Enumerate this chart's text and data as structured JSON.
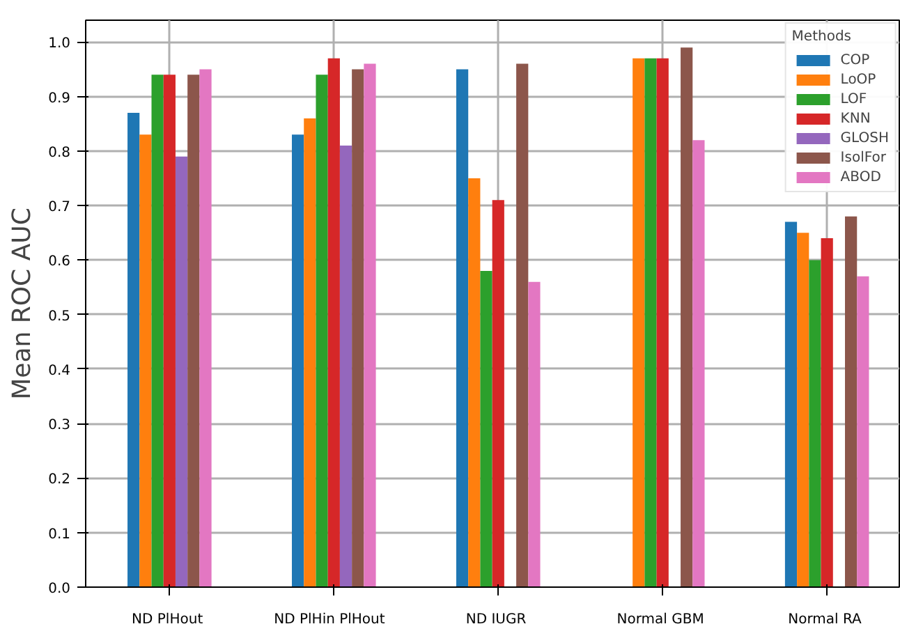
{
  "chart_data": {
    "type": "bar",
    "ylabel": "Mean ROC AUC",
    "legend_title": "Methods",
    "legend": "top right",
    "grid": true,
    "categories": [
      "ND  PlHout",
      "ND  PlHin  PlHout",
      "ND  IUGR",
      "Normal  GBM",
      "Normal  RA"
    ],
    "ylim": [
      0,
      1.04
    ],
    "yticks": [
      {
        "value": 0,
        "label": "0.0"
      },
      {
        "value": 0.1,
        "label": "0.1"
      },
      {
        "value": 0.2,
        "label": "0.2"
      },
      {
        "value": 0.3,
        "label": "0.3"
      },
      {
        "value": 0.4,
        "label": "0.4"
      },
      {
        "value": 0.5,
        "label": "0.5"
      },
      {
        "value": 0.6,
        "label": "0.6"
      },
      {
        "value": 0.7,
        "label": "0.7"
      },
      {
        "value": 0.8,
        "label": "0.8"
      },
      {
        "value": 0.9,
        "label": "0.9"
      },
      {
        "value": 1.0,
        "label": "1.0"
      }
    ],
    "series": [
      {
        "name": "COP",
        "color": "#1f77b4",
        "values": [
          0.87,
          0.83,
          0.95,
          null,
          0.67
        ]
      },
      {
        "name": "LoOP",
        "color": "#ff7f0e",
        "values": [
          0.83,
          0.86,
          0.75,
          0.97,
          0.65
        ]
      },
      {
        "name": "LOF",
        "color": "#2ca02c",
        "values": [
          0.94,
          0.94,
          0.58,
          0.97,
          0.6
        ]
      },
      {
        "name": "KNN",
        "color": "#d62728",
        "values": [
          0.94,
          0.97,
          0.71,
          0.97,
          0.64
        ]
      },
      {
        "name": "GLOSH",
        "color": "#9467bd",
        "values": [
          0.79,
          0.81,
          null,
          null,
          null
        ]
      },
      {
        "name": "IsolFor",
        "color": "#8c564b",
        "values": [
          0.94,
          0.95,
          0.96,
          0.99,
          0.68
        ]
      },
      {
        "name": "ABOD",
        "color": "#e377c2",
        "values": [
          0.95,
          0.96,
          0.56,
          0.82,
          0.57
        ]
      }
    ]
  }
}
